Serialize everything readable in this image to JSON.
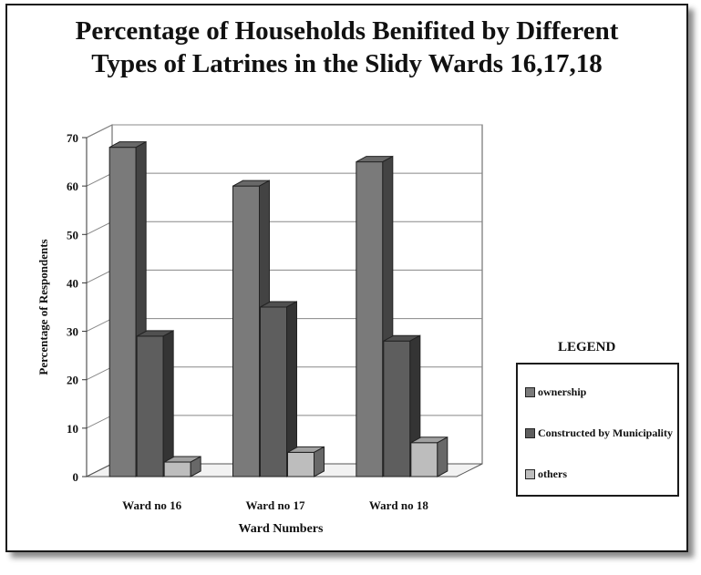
{
  "chart_data": {
    "type": "bar",
    "title_lines": [
      "Percentage of Households Benifited by Different",
      "Types of Latrines in the Slidy Wards 16,17,18"
    ],
    "xlabel": "Ward Numbers",
    "ylabel": "Percentage of Respondents",
    "categories": [
      "Ward no 16",
      "Ward no 17",
      "Ward no 18"
    ],
    "yticks": [
      0,
      10,
      20,
      30,
      40,
      50,
      60,
      70
    ],
    "ylim": [
      0,
      70
    ],
    "grid": true,
    "legend_position": "right",
    "series": [
      {
        "name": "ownership",
        "values": [
          68,
          60,
          65
        ],
        "color": "#7a7a7a"
      },
      {
        "name": "Constructed by Municipality",
        "values": [
          29,
          35,
          28
        ],
        "color": "#5e5e5e"
      },
      {
        "name": "others",
        "values": [
          3,
          5,
          7
        ],
        "color": "#bdbdbd"
      }
    ]
  },
  "legend": {
    "title": "LEGEND",
    "items": [
      {
        "label": "ownership",
        "color": "#7a7a7a"
      },
      {
        "label": "Constructed by Municipality",
        "color": "#5e5e5e"
      },
      {
        "label": "others",
        "color": "#bdbdbd"
      }
    ]
  }
}
